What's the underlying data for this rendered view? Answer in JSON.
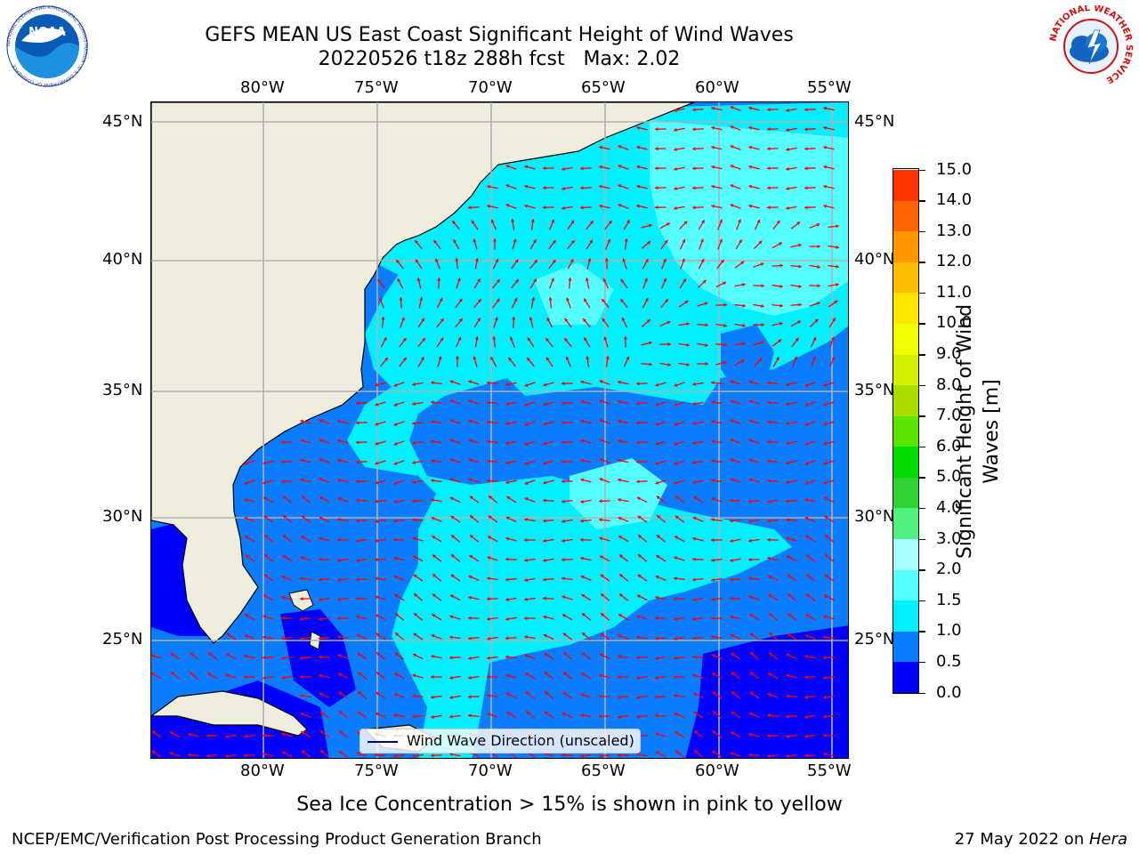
{
  "header": {
    "title_line1": "GEFS MEAN US East Coast Significant Height of Wind Waves",
    "title_line2": "20220526 t18z 288h fcst   Max: 2.02"
  },
  "logos": {
    "noaa_text": "NOAA",
    "noaa_ring": "NATIONAL OCEANIC AND ATMOSPHERIC ADMINISTRATION · U.S. DEPARTMENT OF COMMERCE",
    "nws_ring": "NATIONAL WEATHER SERVICE"
  },
  "map": {
    "lon_ticks": [
      "80°W",
      "75°W",
      "70°W",
      "65°W",
      "60°W",
      "55°W"
    ],
    "lat_ticks": [
      "45°N",
      "40°N",
      "35°N",
      "30°N",
      "25°N"
    ],
    "legend_label": "Wind Wave Direction (unscaled)",
    "land_color": "#efedde",
    "coast_color": "#000000",
    "grid_color": "#b0b0b0",
    "arrow_color": "#ff0000",
    "legend_line_color": "#000080"
  },
  "colorbar": {
    "label": "Significant Height of Wind Waves [m]",
    "label_line1": "Significant Height of Wind",
    "label_line2": "Waves [m]",
    "ticks": [
      "0.0",
      "0.5",
      "1.0",
      "1.5",
      "2.0",
      "3.0",
      "4.0",
      "5.0",
      "6.0",
      "7.0",
      "8.0",
      "9.0",
      "10.0",
      "11.0",
      "12.0",
      "13.0",
      "14.0",
      "15.0"
    ],
    "colors": [
      "#0000ff",
      "#0a7cff",
      "#00f0ff",
      "#55ffff",
      "#a8ffff",
      "#50f080",
      "#32d232",
      "#00dc00",
      "#5ae600",
      "#aadc00",
      "#d2f000",
      "#f0ff00",
      "#ffe600",
      "#ffbe00",
      "#ff9600",
      "#ff6400",
      "#ff3200",
      "#ff0000"
    ]
  },
  "notes": {
    "sea_ice": "Sea Ice Concentration > 15% is shown in pink to yellow"
  },
  "footer": {
    "left": "NCEP/EMC/Verification Post Processing Product Generation Branch",
    "date": "27 May 2022 on ",
    "machine": "Hera"
  }
}
